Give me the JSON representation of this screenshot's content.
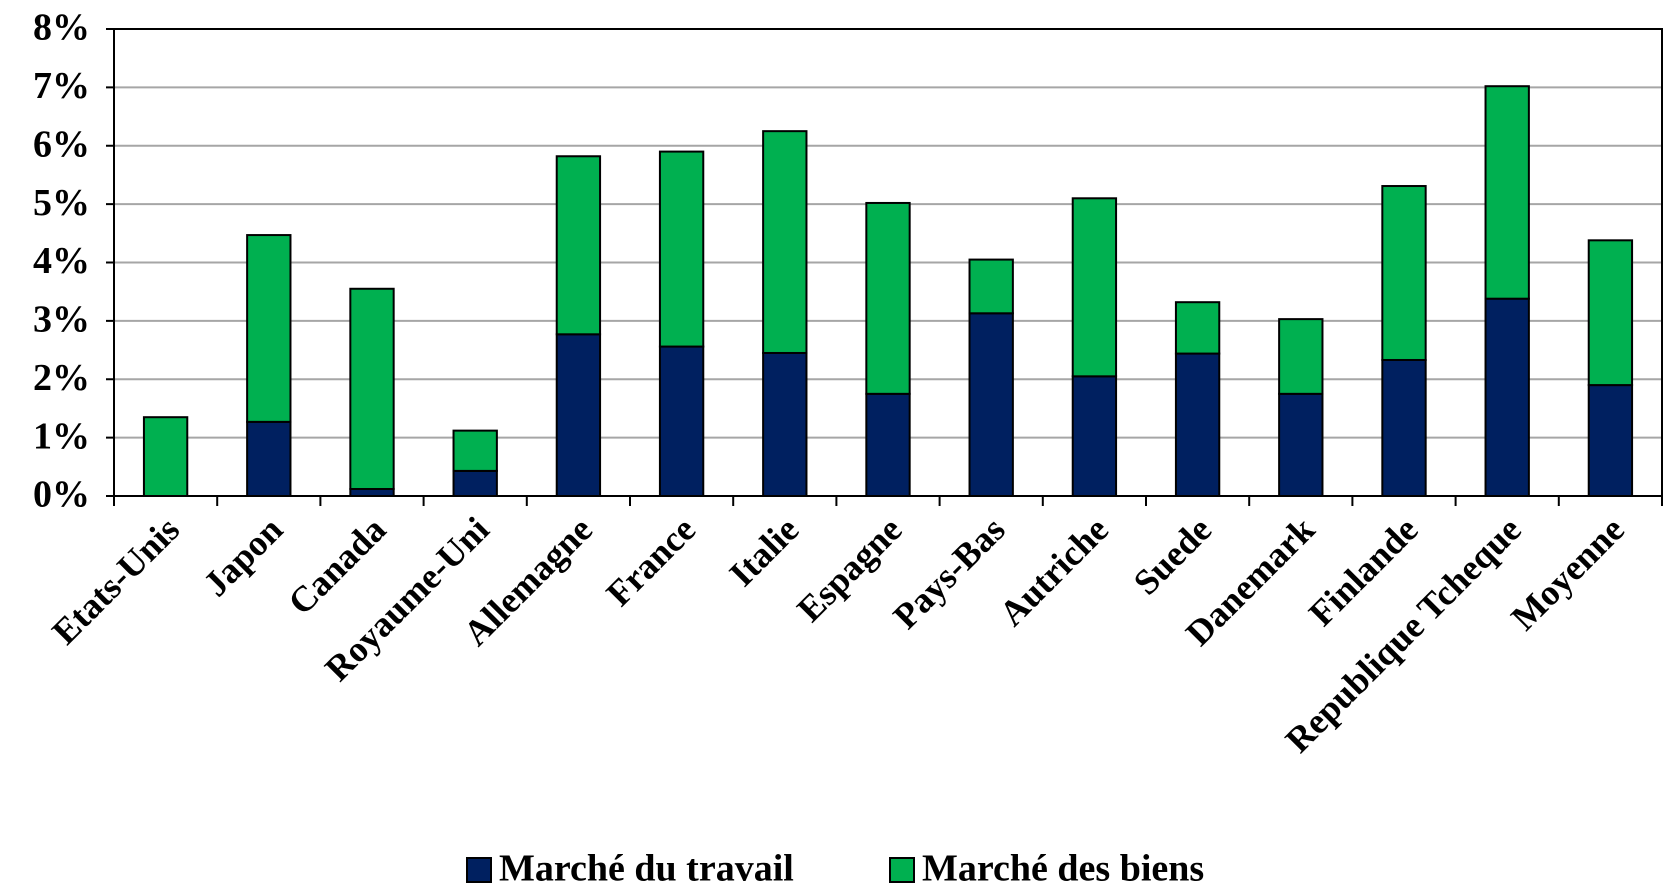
{
  "chart_data": {
    "type": "stacked_bar",
    "categories": [
      "Etats-Unis",
      "Japon",
      "Canada",
      "Royaume-Uni",
      "Allemagne",
      "France",
      "Italie",
      "Espagne",
      "Pays-Bas",
      "Autriche",
      "Suede",
      "Danemark",
      "Finlande",
      "Republique Tcheque",
      "Moyenne"
    ],
    "series": [
      {
        "name": "Marché du travail",
        "color": "#002060",
        "values": [
          0,
          1.27,
          0.12,
          0.43,
          2.77,
          2.56,
          2.45,
          1.75,
          3.13,
          2.05,
          2.44,
          1.75,
          2.33,
          3.38,
          1.9
        ]
      },
      {
        "name": "Marché des biens",
        "color": "#00b050",
        "values": [
          1.35,
          3.2,
          3.43,
          0.69,
          3.05,
          3.34,
          3.8,
          3.27,
          0.92,
          3.05,
          0.88,
          1.28,
          2.98,
          3.64,
          2.48
        ]
      }
    ],
    "ylim": [
      0,
      8
    ],
    "yticks": [
      {
        "value": 0,
        "label": "0%"
      },
      {
        "value": 1,
        "label": "1%"
      },
      {
        "value": 2,
        "label": "2%"
      },
      {
        "value": 3,
        "label": "3%"
      },
      {
        "value": 4,
        "label": "4%"
      },
      {
        "value": 5,
        "label": "5%"
      },
      {
        "value": 6,
        "label": "6%"
      },
      {
        "value": 7,
        "label": "7%"
      },
      {
        "value": 8,
        "label": "8%"
      }
    ],
    "grid": true,
    "legend": "bottom"
  }
}
